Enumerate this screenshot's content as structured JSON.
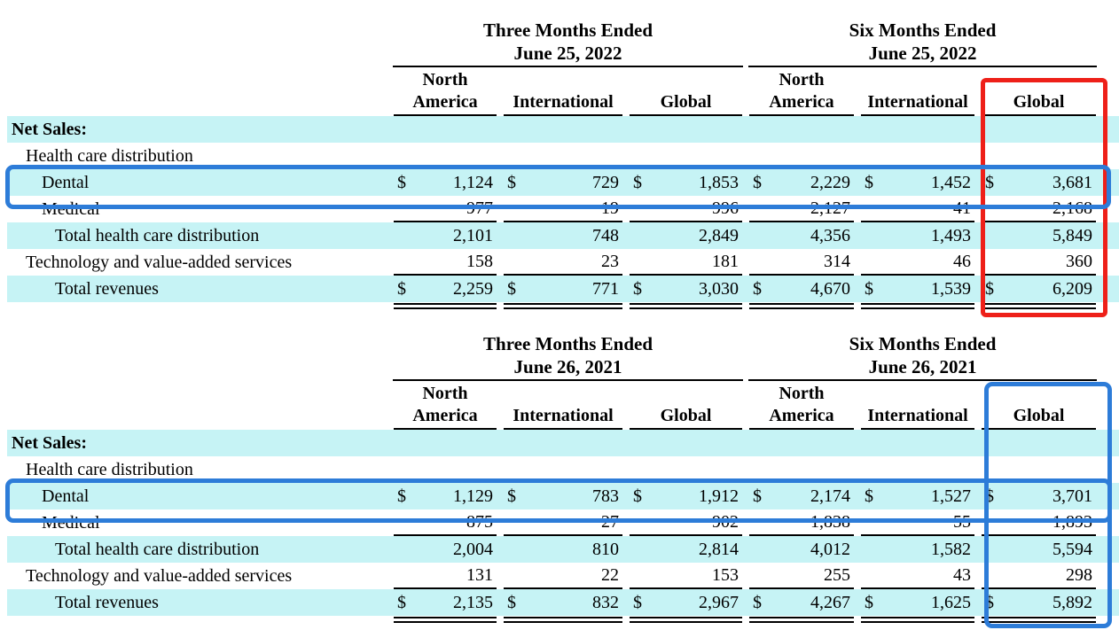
{
  "colors": {
    "highlight_cyan": "#c6f3f5",
    "annotation_blue": "#2d7cd8",
    "annotation_red": "#ee2019",
    "rule_black": "#000000"
  },
  "tables": [
    {
      "id": "2022",
      "period_headers": [
        {
          "title": "Three Months Ended",
          "date": "June 25, 2022"
        },
        {
          "title": "Six Months Ended",
          "date": "June 25, 2022"
        }
      ],
      "column_headers": [
        "North\nAmerica",
        "International",
        "Global",
        "North\nAmerica",
        "International",
        "Global"
      ],
      "rows": [
        {
          "label": "Net Sales:",
          "type": "section",
          "highlight": true,
          "values": [
            "",
            "",
            "",
            "",
            "",
            ""
          ]
        },
        {
          "label": "Health care distribution",
          "type": "group",
          "values": [
            "",
            "",
            "",
            "",
            "",
            ""
          ]
        },
        {
          "label": "Dental",
          "type": "item",
          "highlight": true,
          "dollar": true,
          "values": [
            "1,124",
            "729",
            "1,853",
            "2,229",
            "1,452",
            "3,681"
          ]
        },
        {
          "label": "Medical",
          "type": "item",
          "underline": "single",
          "values": [
            "977",
            "19",
            "996",
            "2,127",
            "41",
            "2,168"
          ]
        },
        {
          "label": "Total health care distribution",
          "type": "total",
          "highlight": true,
          "values": [
            "2,101",
            "748",
            "2,849",
            "4,356",
            "1,493",
            "5,849"
          ]
        },
        {
          "label": "Technology and value-added services",
          "type": "group",
          "underline": "single",
          "values": [
            "158",
            "23",
            "181",
            "314",
            "46",
            "360"
          ]
        },
        {
          "label": "Total revenues",
          "type": "total",
          "highlight": true,
          "dollar": true,
          "underline": "double",
          "values": [
            "2,259",
            "771",
            "3,030",
            "4,670",
            "1,539",
            "6,209"
          ]
        }
      ]
    },
    {
      "id": "2021",
      "period_headers": [
        {
          "title": "Three Months Ended",
          "date": "June 26, 2021"
        },
        {
          "title": "Six Months Ended",
          "date": "June 26, 2021"
        }
      ],
      "column_headers": [
        "North\nAmerica",
        "International",
        "Global",
        "North\nAmerica",
        "International",
        "Global"
      ],
      "rows": [
        {
          "label": "Net Sales:",
          "type": "section",
          "highlight": true,
          "values": [
            "",
            "",
            "",
            "",
            "",
            ""
          ]
        },
        {
          "label": "Health care distribution",
          "type": "group",
          "values": [
            "",
            "",
            "",
            "",
            "",
            ""
          ]
        },
        {
          "label": "Dental",
          "type": "item",
          "highlight": true,
          "dollar": true,
          "values": [
            "1,129",
            "783",
            "1,912",
            "2,174",
            "1,527",
            "3,701"
          ]
        },
        {
          "label": "Medical",
          "type": "item",
          "underline": "single",
          "values": [
            "875",
            "27",
            "902",
            "1,838",
            "55",
            "1,893"
          ]
        },
        {
          "label": "Total health care distribution",
          "type": "total",
          "highlight": true,
          "values": [
            "2,004",
            "810",
            "2,814",
            "4,012",
            "1,582",
            "5,594"
          ]
        },
        {
          "label": "Technology and value-added services",
          "type": "group",
          "underline": "single",
          "values": [
            "131",
            "22",
            "153",
            "255",
            "43",
            "298"
          ]
        },
        {
          "label": "Total revenues",
          "type": "total",
          "highlight": true,
          "dollar": true,
          "underline": "double",
          "values": [
            "2,135",
            "832",
            "2,967",
            "4,267",
            "1,625",
            "5,892"
          ]
        }
      ]
    }
  ],
  "annotations": [
    {
      "id": "red-box-global-2022",
      "shape": "rectangle",
      "color_name": "red",
      "highlights": "Global column, Six Months Ended June 25, 2022"
    },
    {
      "id": "blue-box-dental-2022",
      "shape": "rectangle",
      "color_name": "blue",
      "highlights": "Dental row, 2022 table"
    },
    {
      "id": "blue-box-global-2021",
      "shape": "rectangle",
      "color_name": "blue",
      "highlights": "Global column, Six Months Ended June 26, 2021"
    },
    {
      "id": "blue-box-dental-2021",
      "shape": "rectangle",
      "color_name": "blue",
      "highlights": "Dental row, 2021 table"
    }
  ]
}
